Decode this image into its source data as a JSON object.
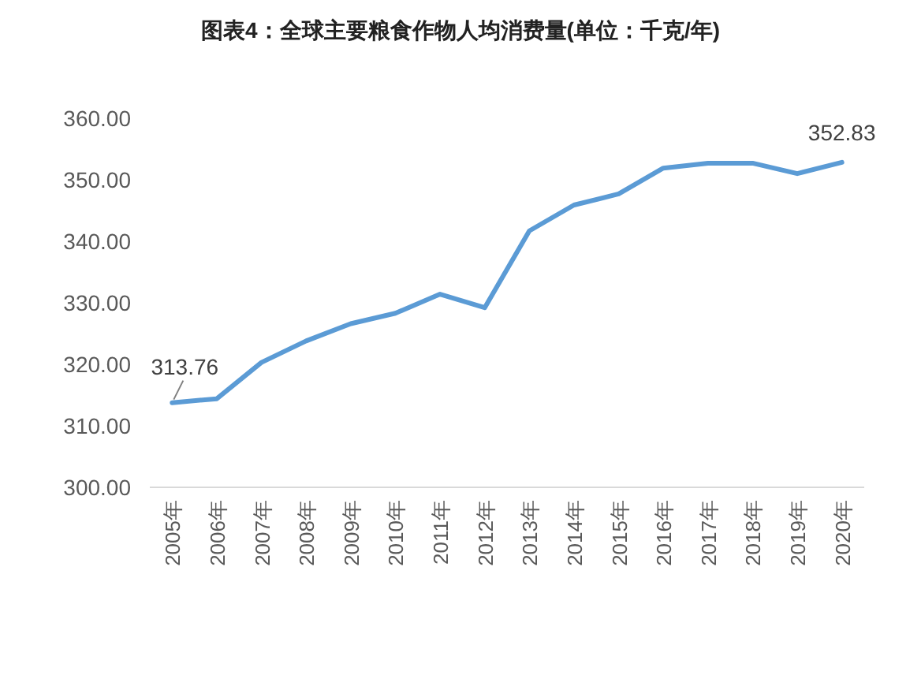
{
  "chart_data": {
    "type": "line",
    "title": "图表4：全球主要粮食作物人均消费量(单位：千克/年)",
    "categories": [
      "2005年",
      "2006年",
      "2007年",
      "2008年",
      "2009年",
      "2010年",
      "2011年",
      "2012年",
      "2013年",
      "2014年",
      "2015年",
      "2016年",
      "2017年",
      "2018年",
      "2019年",
      "2020年"
    ],
    "series": [
      {
        "color": "#5b9bd5",
        "values": [
          313.76,
          314.4,
          320.3,
          323.8,
          326.6,
          328.3,
          331.4,
          329.2,
          341.7,
          345.9,
          347.7,
          351.9,
          352.7,
          352.7,
          351.0,
          352.83
        ],
        "value_labels": [
          "313.76",
          null,
          null,
          null,
          null,
          null,
          null,
          null,
          null,
          null,
          null,
          null,
          null,
          null,
          null,
          "352.83"
        ]
      }
    ],
    "ylim": [
      300,
      360
    ],
    "yticks": [
      {
        "value": 300,
        "label": "300.00"
      },
      {
        "value": 310,
        "label": "310.00"
      },
      {
        "value": 320,
        "label": "320.00"
      },
      {
        "value": 330,
        "label": "330.00"
      },
      {
        "value": 340,
        "label": "340.00"
      },
      {
        "value": 350,
        "label": "350.00"
      },
      {
        "value": 360,
        "label": "360.00"
      }
    ],
    "grid": false,
    "marker": "none",
    "line_style": "solid"
  }
}
